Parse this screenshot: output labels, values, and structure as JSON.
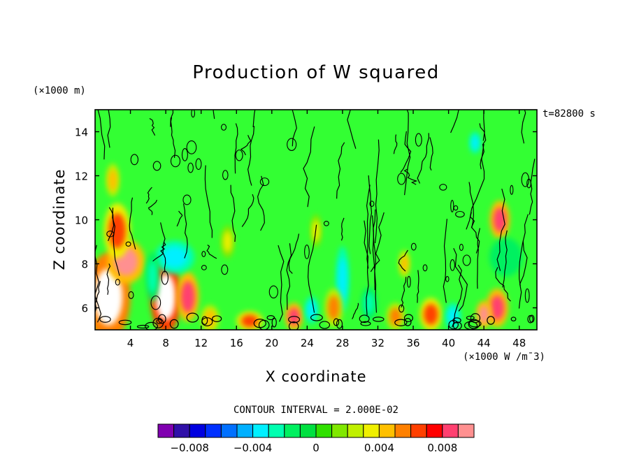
{
  "chart_data": {
    "type": "heatmap",
    "title": "Production of W squared",
    "xlabel": "X coordinate",
    "ylabel": "Z coordinate",
    "x_units": "(×1000 W /m¯3)",
    "y_units": "(×1000 m)",
    "time_label": "t=82800 s",
    "contour_interval_text": "CONTOUR INTERVAL = 2.000E-02",
    "xlim": [
      0,
      50
    ],
    "ylim": [
      5,
      15
    ],
    "x_ticks": [
      4,
      8,
      12,
      16,
      20,
      24,
      28,
      32,
      36,
      40,
      44,
      48
    ],
    "y_ticks": [
      6,
      8,
      10,
      12,
      14
    ],
    "colorbar": {
      "colors": [
        "#8000b0",
        "#3010a8",
        "#0000e0",
        "#0030ff",
        "#0070ff",
        "#00b0ff",
        "#00f0ff",
        "#00ffb0",
        "#00f060",
        "#00e040",
        "#30e000",
        "#80e800",
        "#c0f000",
        "#f0f000",
        "#ffc000",
        "#ff8000",
        "#ff4000",
        "#ff0000",
        "#ff4070",
        "#ff9090"
      ],
      "ticks": [
        -0.008,
        -0.004,
        0,
        0.004,
        0.008
      ],
      "tick_labels": [
        "−0.008",
        "−0.004",
        "0",
        "0.004",
        "0.008"
      ]
    },
    "background_color": "#33ff33",
    "features": [
      {
        "x": 1.5,
        "z": 6.5,
        "rx": 2.0,
        "rz": 1.6,
        "value": 0.01
      },
      {
        "x": 3.5,
        "z": 8.1,
        "rx": 1.7,
        "rz": 0.8,
        "value": 0.009
      },
      {
        "x": 2.5,
        "z": 9.5,
        "rx": 1.2,
        "rz": 1.0,
        "value": 0.006
      },
      {
        "x": 8.0,
        "z": 6.5,
        "rx": 1.4,
        "rz": 1.3,
        "value": 0.012
      },
      {
        "x": 10.5,
        "z": 6.5,
        "rx": 1.0,
        "rz": 0.9,
        "value": 0.008
      },
      {
        "x": 9.0,
        "z": 8.3,
        "rx": 1.8,
        "rz": 0.6,
        "value": -0.004
      },
      {
        "x": 6.5,
        "z": 7.4,
        "rx": 0.6,
        "rz": 0.9,
        "value": -0.003
      },
      {
        "x": 45.8,
        "z": 10.0,
        "rx": 0.9,
        "rz": 0.7,
        "value": 0.008
      },
      {
        "x": 45.5,
        "z": 6.0,
        "rx": 1.0,
        "rz": 0.7,
        "value": 0.008
      },
      {
        "x": 44.0,
        "z": 5.7,
        "rx": 0.7,
        "rz": 0.5,
        "value": 0.009
      },
      {
        "x": 46.5,
        "z": 8.3,
        "rx": 1.5,
        "rz": 0.7,
        "value": -0.002
      },
      {
        "x": 28.0,
        "z": 7.3,
        "rx": 0.6,
        "rz": 1.2,
        "value": -0.004
      },
      {
        "x": 27.0,
        "z": 6.0,
        "rx": 0.8,
        "rz": 0.7,
        "value": 0.005
      },
      {
        "x": 22.5,
        "z": 5.6,
        "rx": 0.8,
        "rz": 0.5,
        "value": 0.008
      },
      {
        "x": 24.5,
        "z": 5.9,
        "rx": 0.6,
        "rz": 0.5,
        "value": -0.004
      },
      {
        "x": 34.0,
        "z": 5.6,
        "rx": 0.8,
        "rz": 0.5,
        "value": 0.005
      },
      {
        "x": 38.0,
        "z": 5.7,
        "rx": 1.0,
        "rz": 0.6,
        "value": 0.006
      },
      {
        "x": 40.5,
        "z": 5.6,
        "rx": 0.7,
        "rz": 0.5,
        "value": -0.004
      },
      {
        "x": 17.5,
        "z": 5.4,
        "rx": 1.2,
        "rz": 0.35,
        "value": 0.006
      },
      {
        "x": 13.0,
        "z": 5.5,
        "rx": 0.8,
        "rz": 0.5,
        "value": 0.004
      },
      {
        "x": 31.0,
        "z": 6.2,
        "rx": 0.7,
        "rz": 0.6,
        "value": -0.003
      },
      {
        "x": 35.0,
        "z": 8.0,
        "rx": 0.5,
        "rz": 0.5,
        "value": 0.004
      },
      {
        "x": 15.0,
        "z": 9.0,
        "rx": 0.6,
        "rz": 0.6,
        "value": 0.003
      },
      {
        "x": 25.0,
        "z": 9.5,
        "rx": 0.5,
        "rz": 0.6,
        "value": 0.003
      },
      {
        "x": 43.0,
        "z": 13.5,
        "rx": 0.5,
        "rz": 0.4,
        "value": -0.004
      },
      {
        "x": 2.0,
        "z": 11.8,
        "rx": 0.6,
        "rz": 0.6,
        "value": 0.004
      }
    ]
  }
}
